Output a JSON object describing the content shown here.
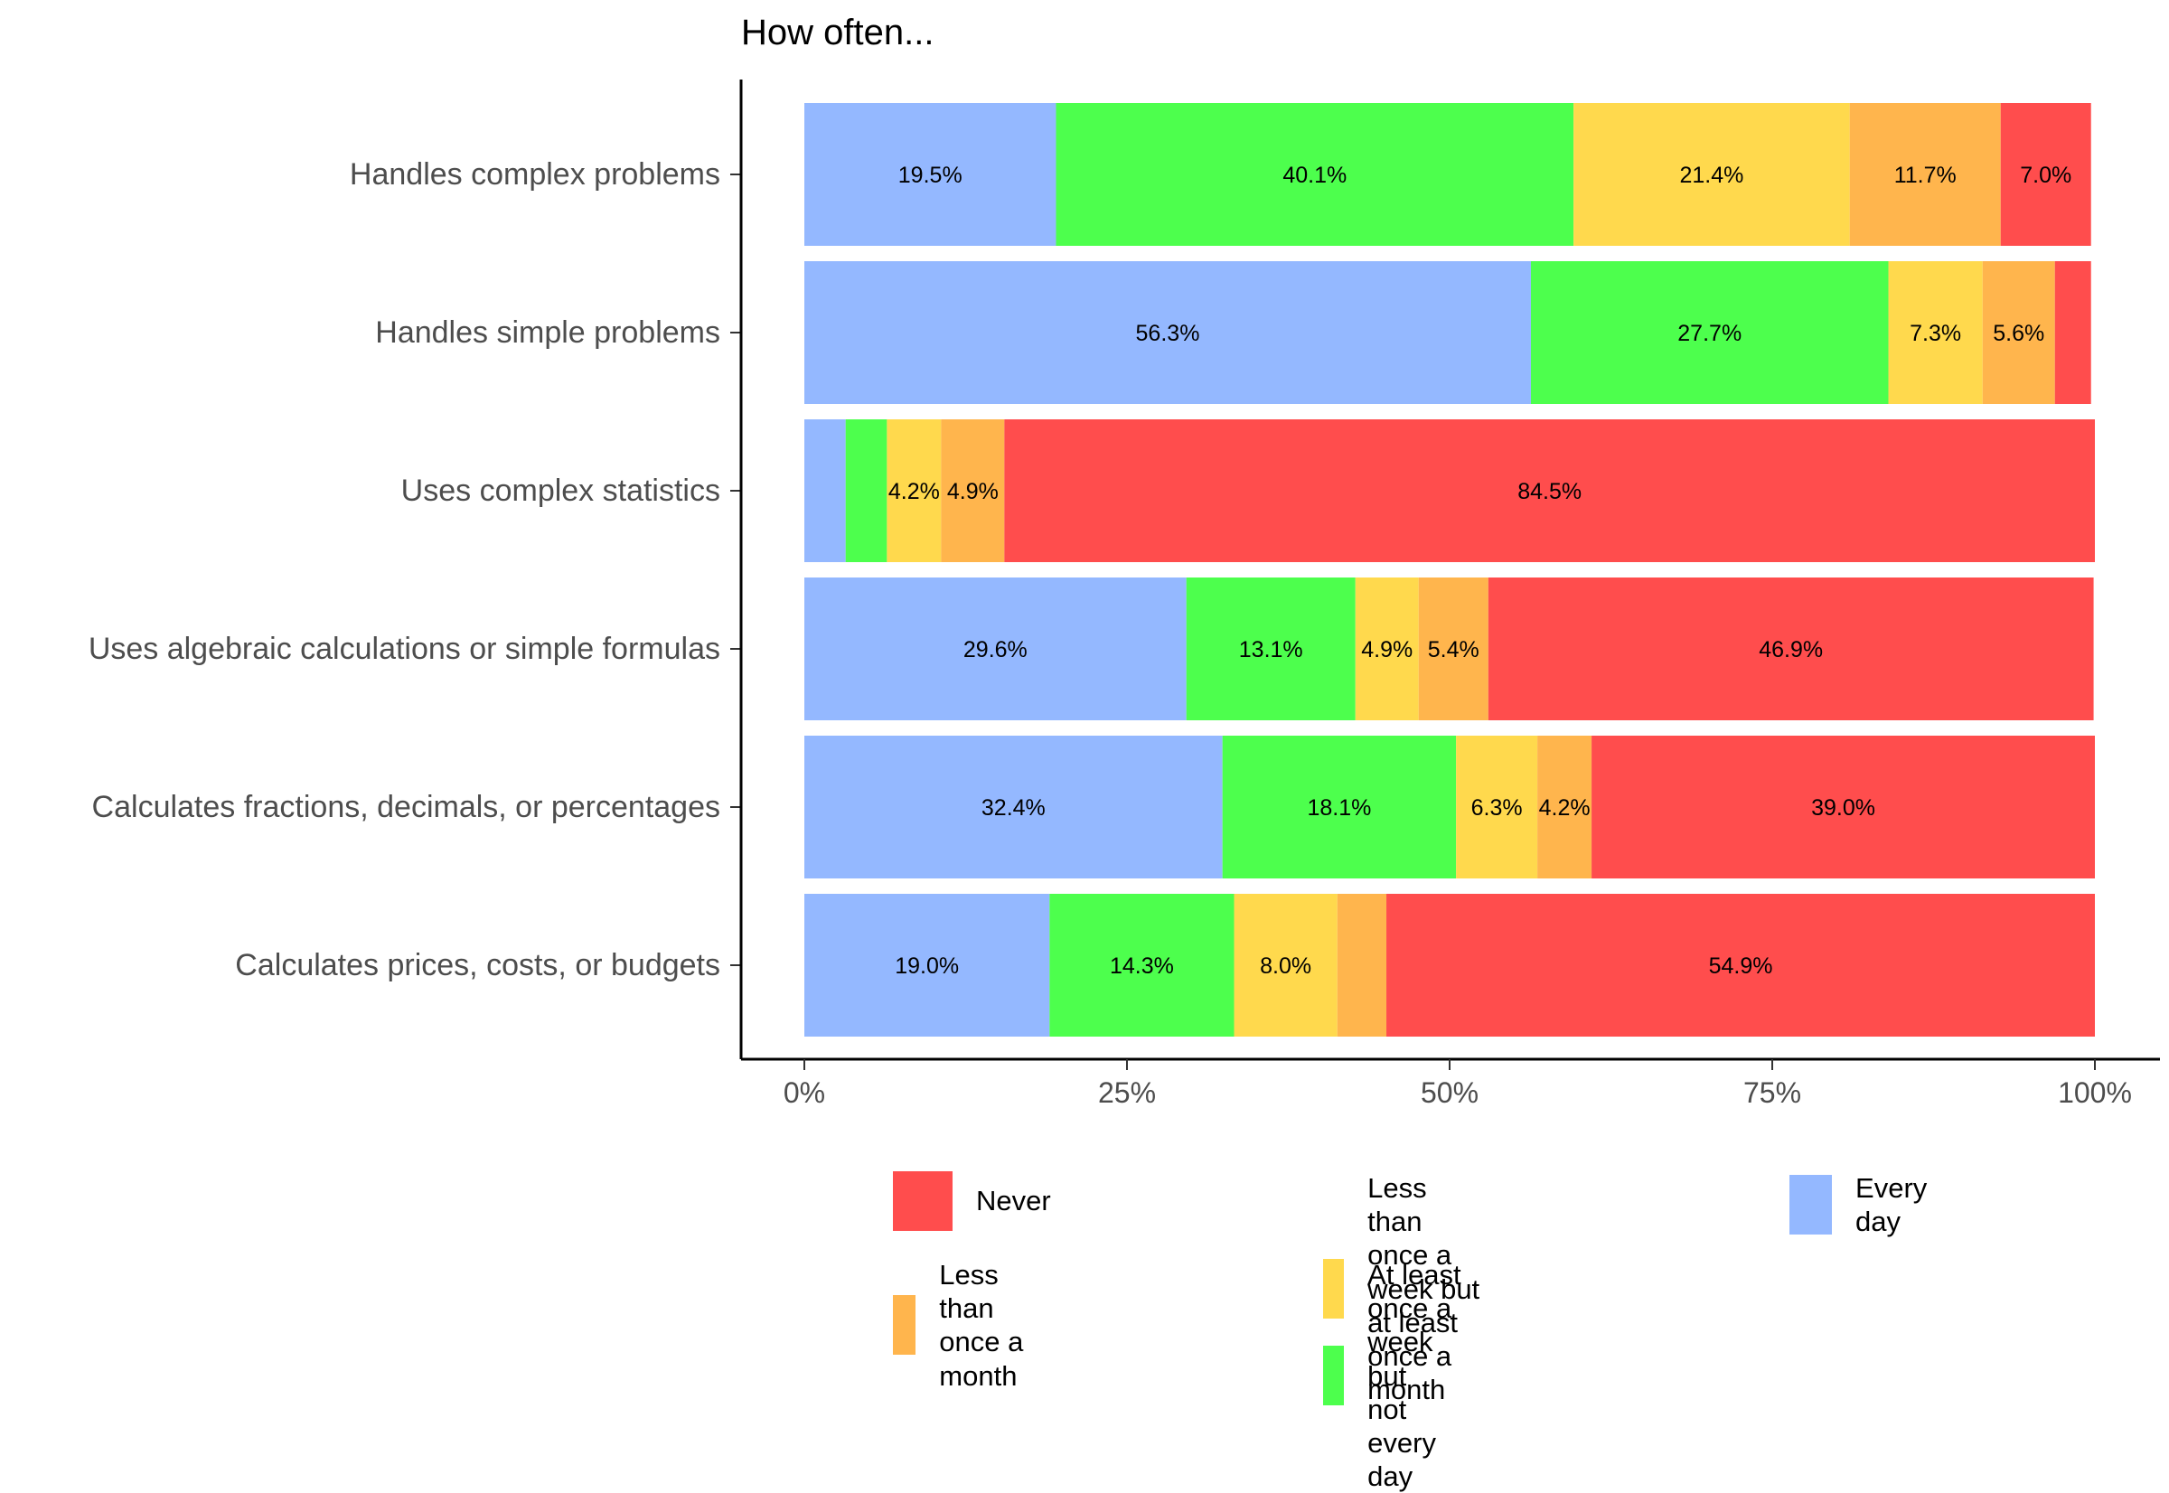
{
  "chart_data": {
    "type": "bar",
    "orientation": "horizontal",
    "stacked": "percent",
    "title": "How often...",
    "xlabel": "",
    "ylabel": "",
    "xlim": [
      0,
      100
    ],
    "x_ticks": [
      "0%",
      "25%",
      "50%",
      "75%",
      "100%"
    ],
    "grid": false,
    "legend_position": "bottom",
    "categories": [
      "Handles complex problems",
      "Handles simple problems",
      "Uses complex statistics",
      "Uses algebraic calculations or simple formulas",
      "Calculates fractions, decimals, or percentages",
      "Calculates prices, costs, or budgets"
    ],
    "series": [
      {
        "name": "Every day",
        "color": "#94B8FF",
        "values": [
          19.5,
          56.3,
          3.2,
          29.6,
          32.4,
          19.0
        ],
        "labels": [
          "19.5%",
          "56.3%",
          "",
          "29.6%",
          "32.4%",
          "19.0%"
        ]
      },
      {
        "name": "At least once a week but not every day",
        "color": "#4DFF4D",
        "values": [
          40.1,
          27.7,
          3.2,
          13.1,
          18.1,
          14.3
        ],
        "labels": [
          "40.1%",
          "27.7%",
          "",
          "13.1%",
          "18.1%",
          "14.3%"
        ]
      },
      {
        "name": "Less than once a week but at least once a month",
        "color": "#FFD94D",
        "values": [
          21.4,
          7.3,
          4.2,
          4.9,
          6.3,
          8.0
        ],
        "labels": [
          "21.4%",
          "7.3%",
          "4.2%",
          "4.9%",
          "6.3%",
          "8.0%"
        ]
      },
      {
        "name": "Less than once a month",
        "color": "#FFB54D",
        "values": [
          11.7,
          5.6,
          4.9,
          5.4,
          4.2,
          3.8
        ],
        "labels": [
          "11.7%",
          "5.6%",
          "4.9%",
          "5.4%",
          "4.2%",
          ""
        ]
      },
      {
        "name": "Never",
        "color": "#FF4D4D",
        "values": [
          7.0,
          2.8,
          84.5,
          46.9,
          39.0,
          54.9
        ],
        "labels": [
          "7.0%",
          "",
          "84.5%",
          "46.9%",
          "39.0%",
          "54.9%"
        ]
      }
    ]
  },
  "legend": {
    "items": [
      {
        "label": "Never",
        "color": "#FF4D4D"
      },
      {
        "label": "Less than once a month",
        "color": "#FFB54D"
      },
      {
        "label": "Less than once a week but\nat least once a month",
        "color": "#FFD94D"
      },
      {
        "label": "At least once a week but\nnot every day",
        "color": "#4DFF4D"
      },
      {
        "label": "Every day",
        "color": "#94B8FF"
      }
    ]
  }
}
